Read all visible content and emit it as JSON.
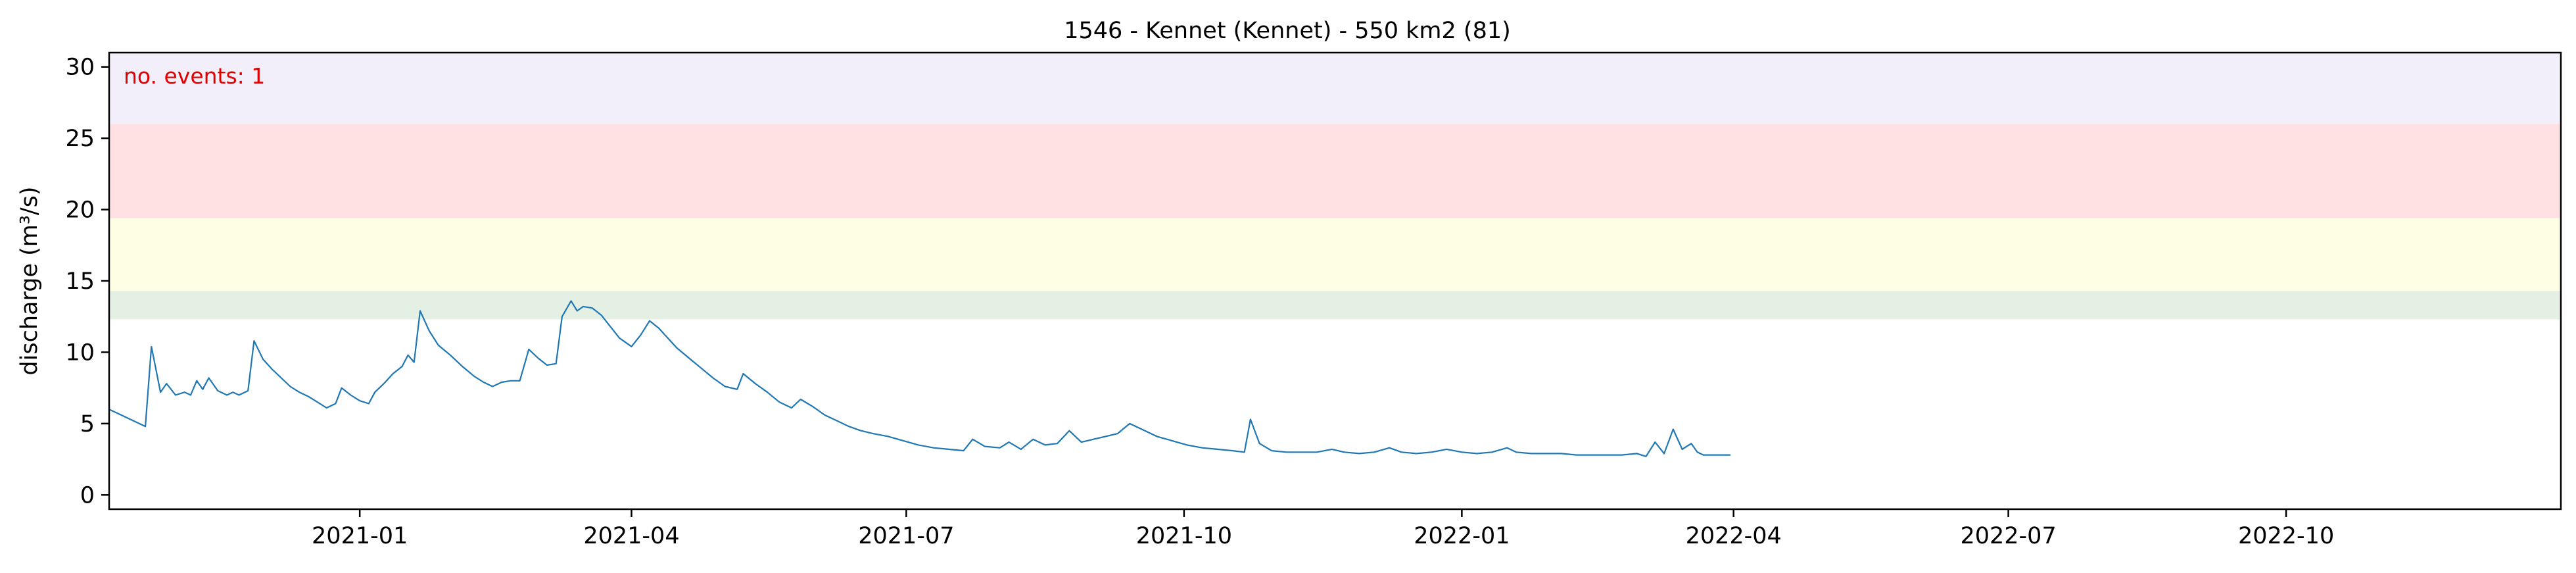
{
  "chart_data": {
    "type": "line",
    "title": "1546 - Kennet (Kennet) - 550 km2 (81)",
    "ylabel": "discharge (m³/s)",
    "xlabel": "",
    "x_range": [
      "2020-10-10",
      "2022-12-31"
    ],
    "ylim": [
      -1,
      31
    ],
    "y_ticks": [
      0,
      5,
      10,
      15,
      20,
      25,
      30
    ],
    "x_ticks": [
      {
        "date": "2021-01-01",
        "label": "2021-01"
      },
      {
        "date": "2021-04-01",
        "label": "2021-04"
      },
      {
        "date": "2021-07-01",
        "label": "2021-07"
      },
      {
        "date": "2021-10-01",
        "label": "2021-10"
      },
      {
        "date": "2022-01-01",
        "label": "2022-01"
      },
      {
        "date": "2022-04-01",
        "label": "2022-04"
      },
      {
        "date": "2022-07-01",
        "label": "2022-07"
      },
      {
        "date": "2022-10-01",
        "label": "2022-10"
      }
    ],
    "threshold_bands": [
      {
        "from": 12.3,
        "to": 14.3,
        "color": "#e5f0e5"
      },
      {
        "from": 14.3,
        "to": 19.4,
        "color": "#fefee5"
      },
      {
        "from": 19.4,
        "to": 26.0,
        "color": "#ffe0e3"
      },
      {
        "from": 26.0,
        "to": 31.0,
        "color": "#f3effa"
      }
    ],
    "annotation": "no. events: 1",
    "series": [
      {
        "color": "#1f77b4",
        "points": [
          [
            "2020-10-10",
            6.0
          ],
          [
            "2020-10-14",
            5.6
          ],
          [
            "2020-10-18",
            5.2
          ],
          [
            "2020-10-22",
            4.8
          ],
          [
            "2020-10-24",
            10.4
          ],
          [
            "2020-10-27",
            7.2
          ],
          [
            "2020-10-29",
            7.8
          ],
          [
            "2020-11-01",
            7.0
          ],
          [
            "2020-11-04",
            7.2
          ],
          [
            "2020-11-06",
            7.0
          ],
          [
            "2020-11-08",
            8.0
          ],
          [
            "2020-11-10",
            7.4
          ],
          [
            "2020-11-12",
            8.2
          ],
          [
            "2020-11-15",
            7.3
          ],
          [
            "2020-11-18",
            7.0
          ],
          [
            "2020-11-20",
            7.2
          ],
          [
            "2020-11-22",
            7.0
          ],
          [
            "2020-11-25",
            7.3
          ],
          [
            "2020-11-27",
            10.8
          ],
          [
            "2020-11-30",
            9.5
          ],
          [
            "2020-12-03",
            8.8
          ],
          [
            "2020-12-06",
            8.2
          ],
          [
            "2020-12-09",
            7.6
          ],
          [
            "2020-12-12",
            7.2
          ],
          [
            "2020-12-15",
            6.9
          ],
          [
            "2020-12-18",
            6.5
          ],
          [
            "2020-12-21",
            6.1
          ],
          [
            "2020-12-24",
            6.4
          ],
          [
            "2020-12-26",
            7.5
          ],
          [
            "2020-12-29",
            7.0
          ],
          [
            "2021-01-01",
            6.6
          ],
          [
            "2021-01-04",
            6.4
          ],
          [
            "2021-01-06",
            7.2
          ],
          [
            "2021-01-09",
            7.8
          ],
          [
            "2021-01-12",
            8.5
          ],
          [
            "2021-01-15",
            9.0
          ],
          [
            "2021-01-17",
            9.8
          ],
          [
            "2021-01-19",
            9.3
          ],
          [
            "2021-01-21",
            12.9
          ],
          [
            "2021-01-24",
            11.5
          ],
          [
            "2021-01-27",
            10.5
          ],
          [
            "2021-01-31",
            9.8
          ],
          [
            "2021-02-04",
            9.0
          ],
          [
            "2021-02-08",
            8.3
          ],
          [
            "2021-02-11",
            7.9
          ],
          [
            "2021-02-14",
            7.6
          ],
          [
            "2021-02-17",
            7.9
          ],
          [
            "2021-02-20",
            8.0
          ],
          [
            "2021-02-23",
            8.0
          ],
          [
            "2021-02-26",
            10.2
          ],
          [
            "2021-03-01",
            9.6
          ],
          [
            "2021-03-04",
            9.1
          ],
          [
            "2021-03-07",
            9.2
          ],
          [
            "2021-03-09",
            12.5
          ],
          [
            "2021-03-12",
            13.6
          ],
          [
            "2021-03-14",
            12.9
          ],
          [
            "2021-03-16",
            13.2
          ],
          [
            "2021-03-19",
            13.1
          ],
          [
            "2021-03-22",
            12.6
          ],
          [
            "2021-03-25",
            11.8
          ],
          [
            "2021-03-28",
            11.0
          ],
          [
            "2021-04-01",
            10.4
          ],
          [
            "2021-04-04",
            11.2
          ],
          [
            "2021-04-07",
            12.2
          ],
          [
            "2021-04-10",
            11.7
          ],
          [
            "2021-04-13",
            11.0
          ],
          [
            "2021-04-16",
            10.3
          ],
          [
            "2021-04-20",
            9.6
          ],
          [
            "2021-04-24",
            8.9
          ],
          [
            "2021-04-28",
            8.2
          ],
          [
            "2021-05-02",
            7.6
          ],
          [
            "2021-05-06",
            7.4
          ],
          [
            "2021-05-08",
            8.5
          ],
          [
            "2021-05-12",
            7.8
          ],
          [
            "2021-05-16",
            7.2
          ],
          [
            "2021-05-20",
            6.5
          ],
          [
            "2021-05-24",
            6.1
          ],
          [
            "2021-05-27",
            6.7
          ],
          [
            "2021-05-31",
            6.2
          ],
          [
            "2021-06-04",
            5.6
          ],
          [
            "2021-06-08",
            5.2
          ],
          [
            "2021-06-12",
            4.8
          ],
          [
            "2021-06-16",
            4.5
          ],
          [
            "2021-06-20",
            4.3
          ],
          [
            "2021-06-25",
            4.1
          ],
          [
            "2021-06-30",
            3.8
          ],
          [
            "2021-07-05",
            3.5
          ],
          [
            "2021-07-10",
            3.3
          ],
          [
            "2021-07-15",
            3.2
          ],
          [
            "2021-07-20",
            3.1
          ],
          [
            "2021-07-23",
            3.9
          ],
          [
            "2021-07-27",
            3.4
          ],
          [
            "2021-08-01",
            3.3
          ],
          [
            "2021-08-04",
            3.7
          ],
          [
            "2021-08-08",
            3.2
          ],
          [
            "2021-08-12",
            3.9
          ],
          [
            "2021-08-16",
            3.5
          ],
          [
            "2021-08-20",
            3.6
          ],
          [
            "2021-08-24",
            4.5
          ],
          [
            "2021-08-28",
            3.7
          ],
          [
            "2021-09-01",
            3.9
          ],
          [
            "2021-09-05",
            4.1
          ],
          [
            "2021-09-09",
            4.3
          ],
          [
            "2021-09-13",
            5.0
          ],
          [
            "2021-09-17",
            4.6
          ],
          [
            "2021-09-22",
            4.1
          ],
          [
            "2021-09-27",
            3.8
          ],
          [
            "2021-10-02",
            3.5
          ],
          [
            "2021-10-07",
            3.3
          ],
          [
            "2021-10-12",
            3.2
          ],
          [
            "2021-10-17",
            3.1
          ],
          [
            "2021-10-21",
            3.0
          ],
          [
            "2021-10-23",
            5.3
          ],
          [
            "2021-10-26",
            3.6
          ],
          [
            "2021-10-30",
            3.1
          ],
          [
            "2021-11-04",
            3.0
          ],
          [
            "2021-11-09",
            3.0
          ],
          [
            "2021-11-14",
            3.0
          ],
          [
            "2021-11-19",
            3.2
          ],
          [
            "2021-11-23",
            3.0
          ],
          [
            "2021-11-28",
            2.9
          ],
          [
            "2021-12-03",
            3.0
          ],
          [
            "2021-12-08",
            3.3
          ],
          [
            "2021-12-12",
            3.0
          ],
          [
            "2021-12-17",
            2.9
          ],
          [
            "2021-12-22",
            3.0
          ],
          [
            "2021-12-27",
            3.2
          ],
          [
            "2022-01-01",
            3.0
          ],
          [
            "2022-01-06",
            2.9
          ],
          [
            "2022-01-11",
            3.0
          ],
          [
            "2022-01-16",
            3.3
          ],
          [
            "2022-01-19",
            3.0
          ],
          [
            "2022-01-24",
            2.9
          ],
          [
            "2022-01-29",
            2.9
          ],
          [
            "2022-02-03",
            2.9
          ],
          [
            "2022-02-08",
            2.8
          ],
          [
            "2022-02-13",
            2.8
          ],
          [
            "2022-02-18",
            2.8
          ],
          [
            "2022-02-23",
            2.8
          ],
          [
            "2022-02-28",
            2.9
          ],
          [
            "2022-03-03",
            2.7
          ],
          [
            "2022-03-06",
            3.7
          ],
          [
            "2022-03-09",
            2.9
          ],
          [
            "2022-03-12",
            4.6
          ],
          [
            "2022-03-15",
            3.2
          ],
          [
            "2022-03-18",
            3.6
          ],
          [
            "2022-03-20",
            3.0
          ],
          [
            "2022-03-22",
            2.8
          ],
          [
            "2022-03-25",
            2.8
          ],
          [
            "2022-03-28",
            2.8
          ],
          [
            "2022-03-31",
            2.8
          ],
          [
            "2021-11-01",
            null
          ]
        ]
      }
    ]
  }
}
